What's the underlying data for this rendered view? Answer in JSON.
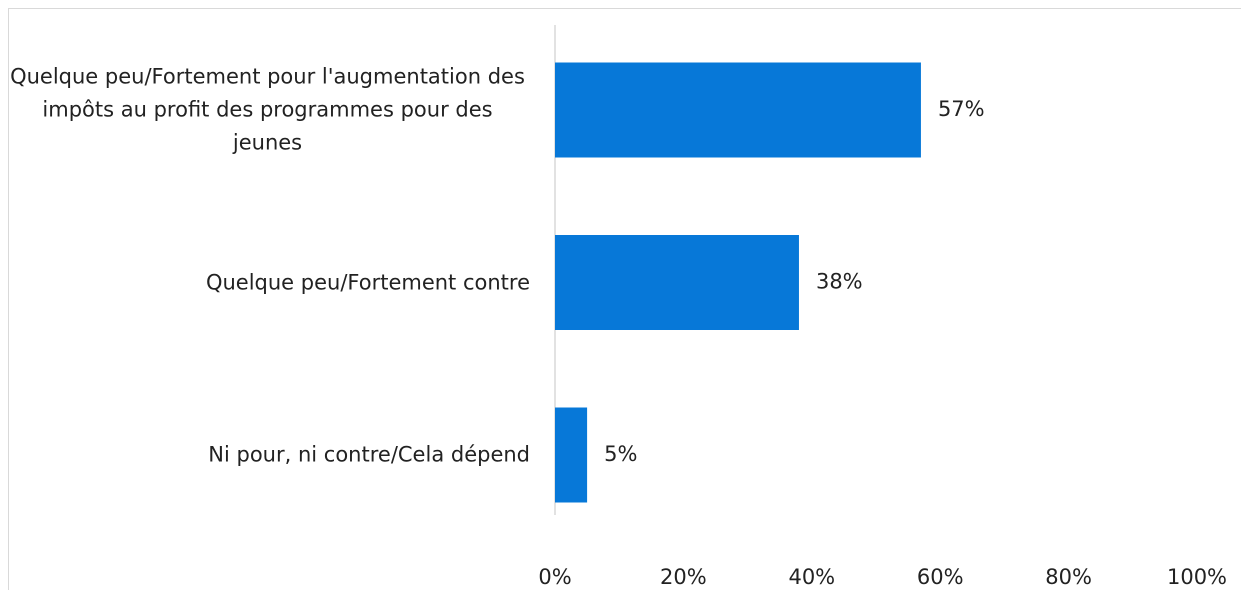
{
  "chart_data": {
    "type": "bar",
    "orientation": "horizontal",
    "categories": [
      "Quelque peu/Fortement pour l'augmentation des impôts au profit des programmes pour des jeunes",
      "Quelque peu/Fortement contre",
      "Ni pour, ni contre/Cela dépend"
    ],
    "values": [
      57,
      38,
      5
    ],
    "value_labels": [
      "57%",
      "38%",
      "5%"
    ],
    "color": "#0778d8",
    "xlim": [
      0,
      100
    ],
    "xticks": [
      {
        "value": 0,
        "label": "0%"
      },
      {
        "value": 20,
        "label": "20%"
      },
      {
        "value": 40,
        "label": "40%"
      },
      {
        "value": 60,
        "label": "60%"
      },
      {
        "value": 80,
        "label": "80%"
      },
      {
        "value": 100,
        "label": "100%"
      }
    ],
    "grid": false
  }
}
